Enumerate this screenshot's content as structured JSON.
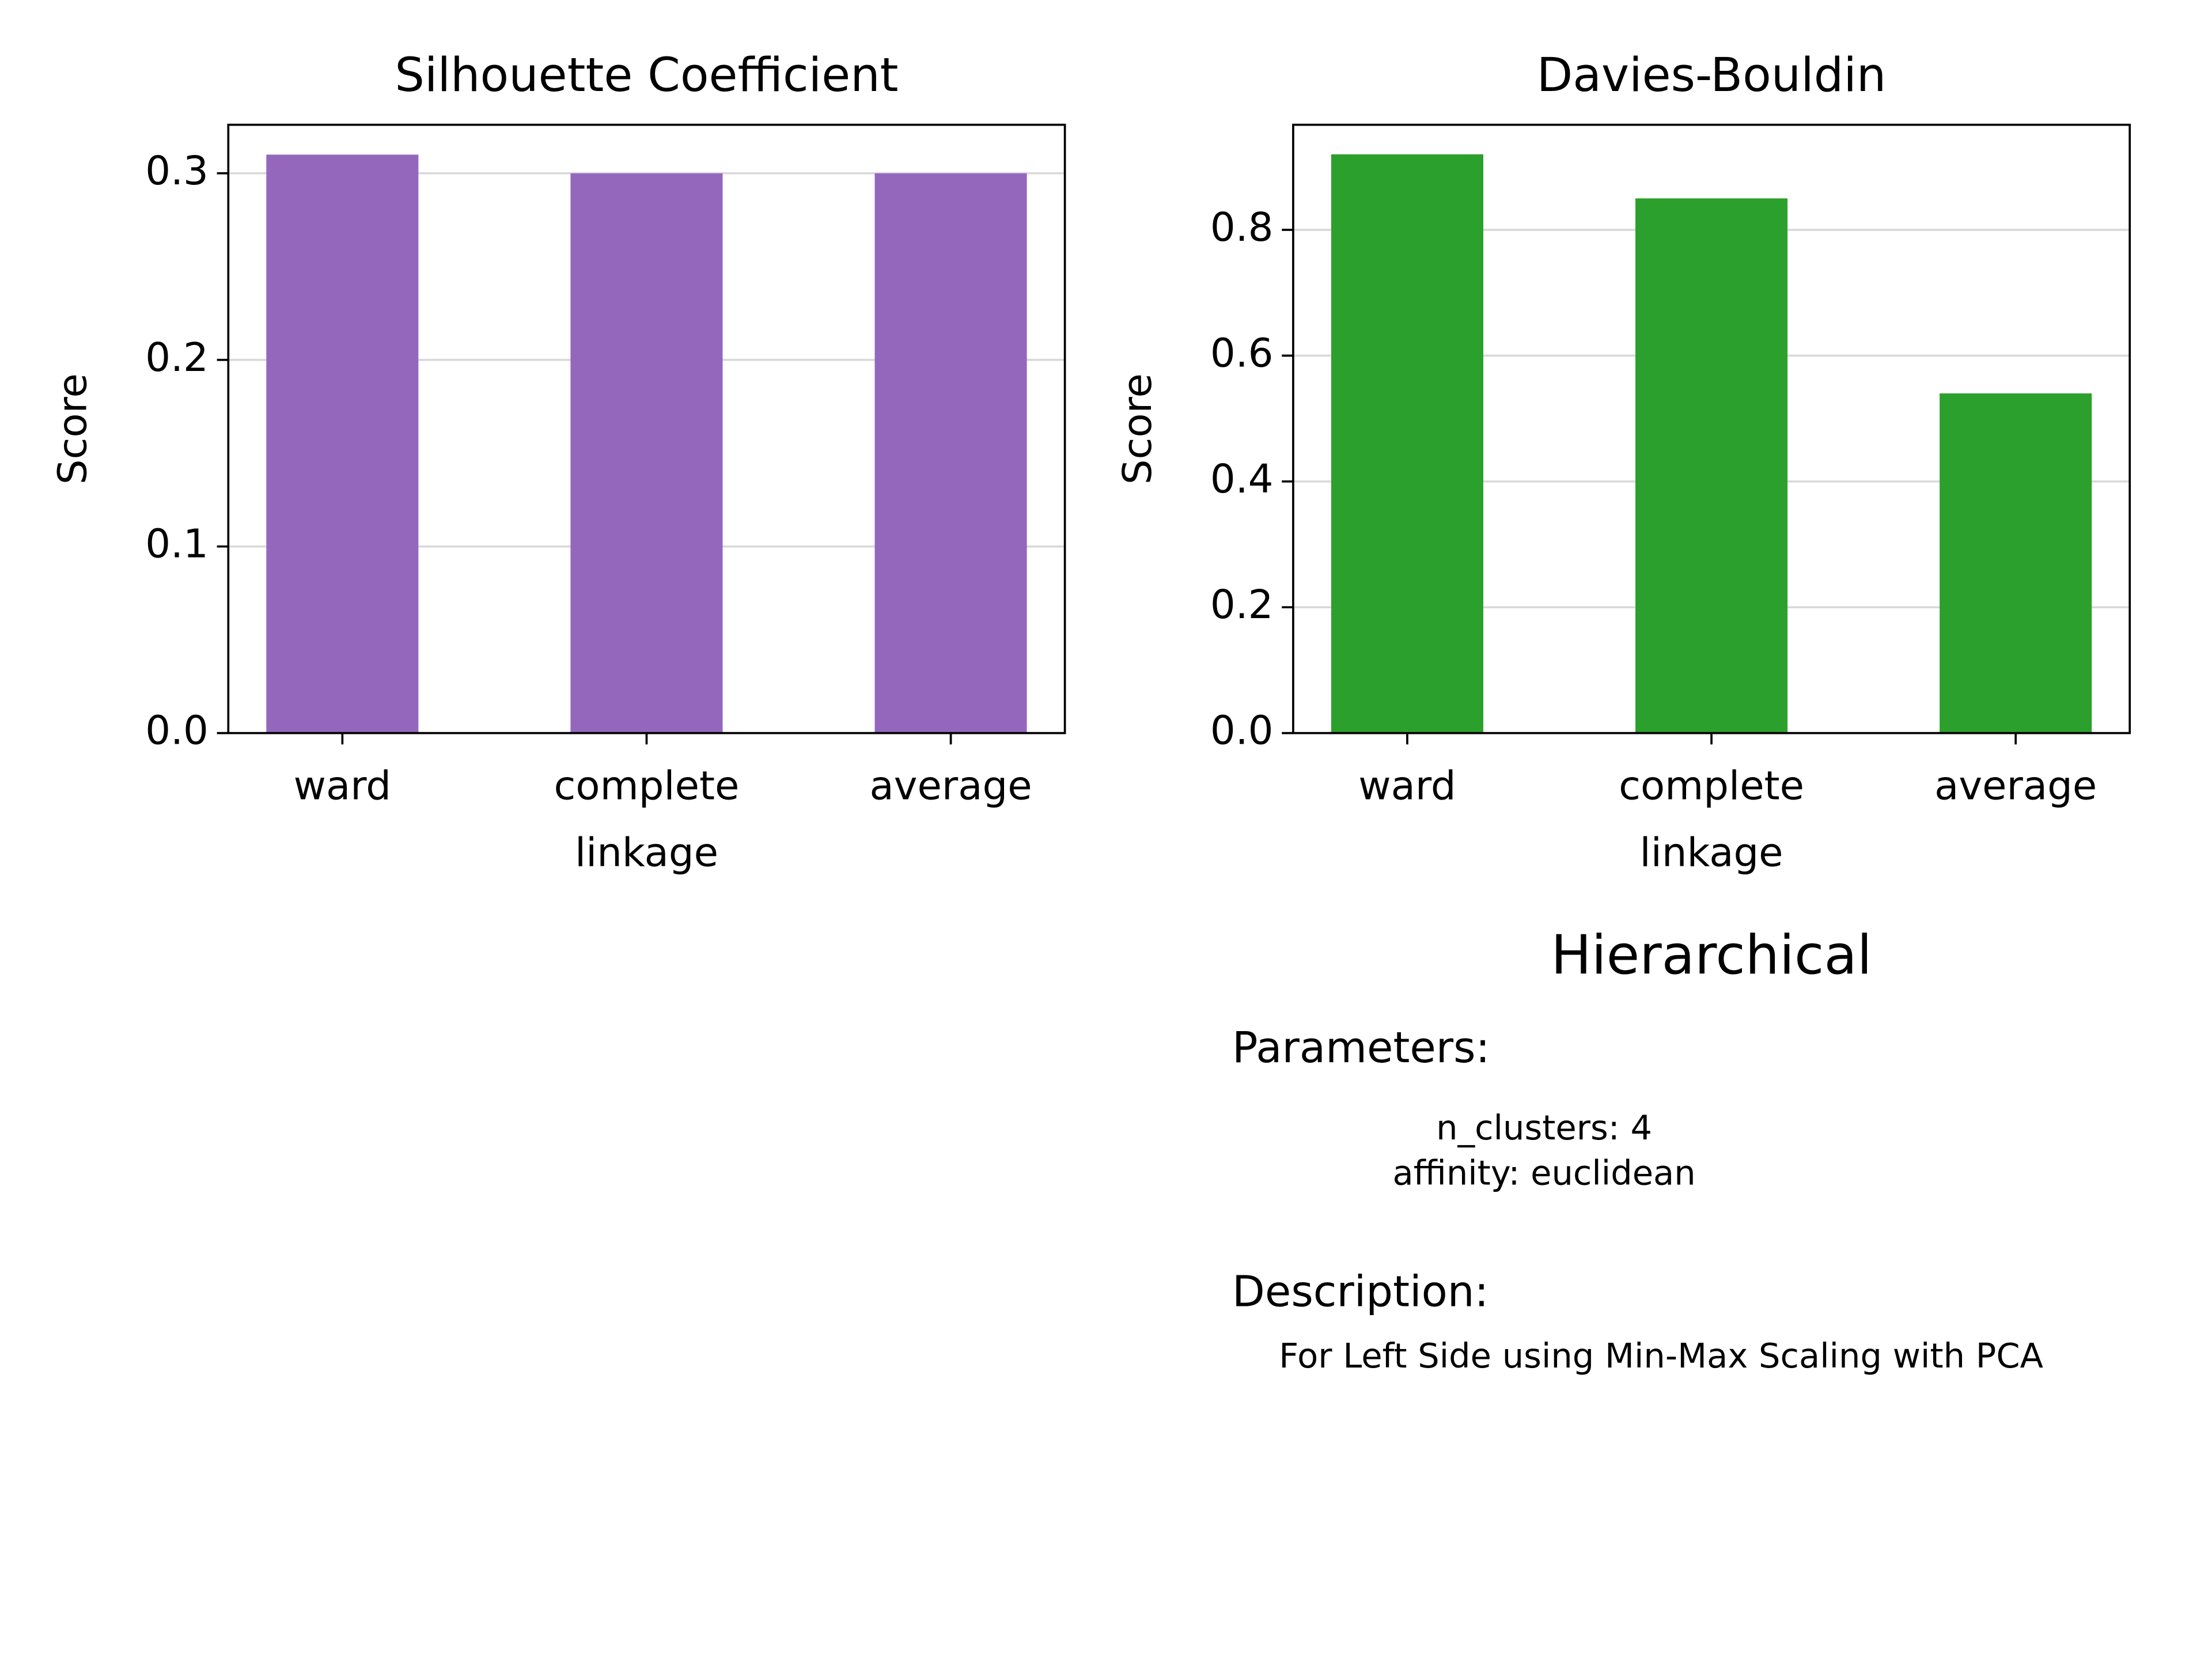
{
  "chart_data": [
    {
      "type": "bar",
      "title": "Silhouette Coefficient",
      "x_label": "linkage",
      "y_label": "Score",
      "categories": [
        "ward",
        "complete",
        "average"
      ],
      "values": [
        0.31,
        0.3,
        0.3
      ],
      "color": "#9467bd",
      "ylim": [
        0,
        0.326
      ],
      "yticks": [
        {
          "value": 0,
          "label": "0.0"
        },
        0.1,
        0.2,
        0.3
      ],
      "grid": true
    },
    {
      "type": "bar",
      "title": "Davies-Bouldin",
      "x_label": "linkage",
      "y_label": "Score",
      "categories": [
        "ward",
        "complete",
        "average"
      ],
      "values": [
        0.92,
        0.85,
        0.54
      ],
      "color": "#2ca02c",
      "ylim": [
        0,
        0.967
      ],
      "yticks": [
        {
          "value": 0,
          "label": "0.0"
        },
        0.2,
        0.4,
        0.6,
        0.8
      ],
      "grid": true
    }
  ],
  "info_panel": {
    "title": "Hierarchical",
    "parameters_heading": "Parameters:",
    "parameters": [
      "n_clusters: 4",
      "affinity: euclidean"
    ],
    "description_heading": "Description:",
    "description": "For Left Side using Min-Max Scaling with PCA"
  }
}
